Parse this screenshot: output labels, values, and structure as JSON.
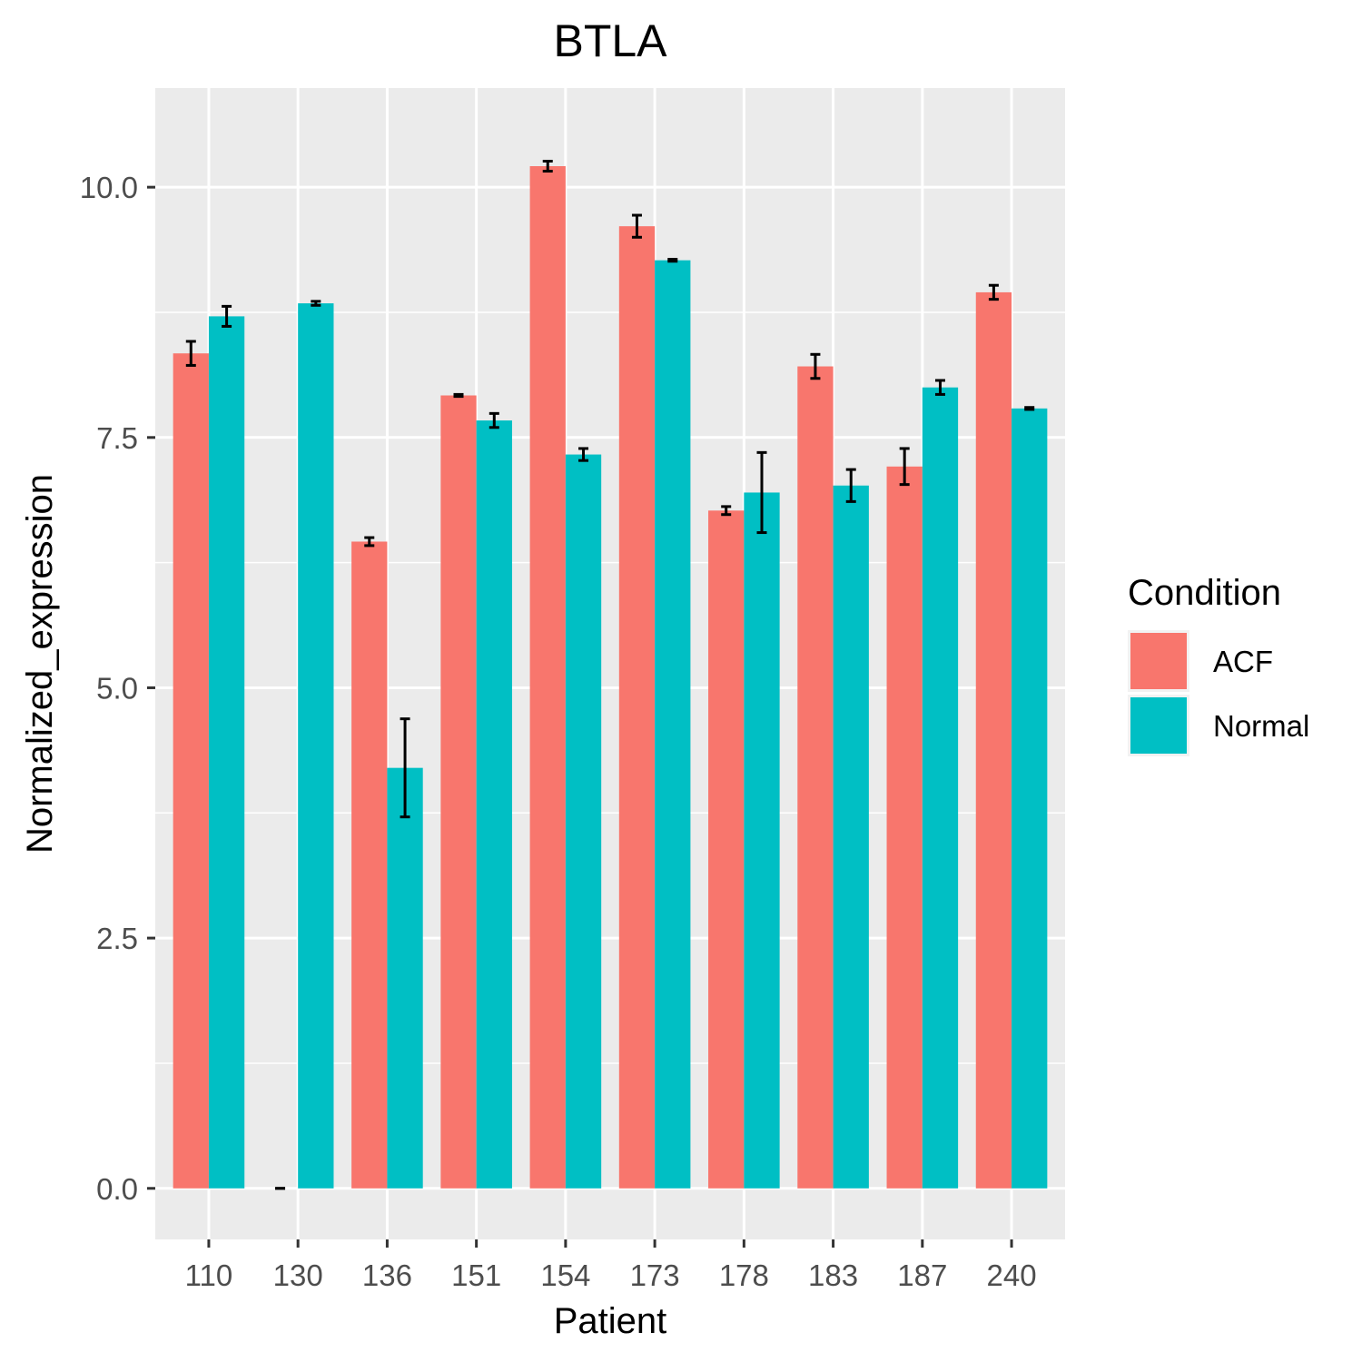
{
  "chart_data": {
    "type": "bar",
    "title": "BTLA",
    "xlabel": "Patient",
    "ylabel": "Normalized_expression",
    "categories": [
      "110",
      "130",
      "136",
      "151",
      "154",
      "173",
      "178",
      "183",
      "187",
      "240"
    ],
    "series": [
      {
        "name": "ACF",
        "color": "#F8766D",
        "values": [
          8.34,
          0.0,
          6.46,
          7.92,
          10.21,
          9.61,
          6.77,
          8.21,
          7.21,
          8.95
        ],
        "error_low": [
          8.22,
          0.0,
          6.42,
          7.91,
          10.16,
          9.5,
          6.73,
          8.09,
          7.03,
          8.88
        ],
        "error_high": [
          8.46,
          0.0,
          6.5,
          7.93,
          10.26,
          9.72,
          6.81,
          8.33,
          7.39,
          9.02
        ]
      },
      {
        "name": "Normal",
        "color": "#00BFC4",
        "values": [
          8.71,
          8.84,
          4.2,
          7.67,
          7.33,
          9.27,
          6.95,
          7.02,
          8.0,
          7.79
        ],
        "error_low": [
          8.61,
          8.82,
          3.71,
          7.6,
          7.27,
          9.26,
          6.55,
          6.86,
          7.93,
          7.78
        ],
        "error_high": [
          8.81,
          8.86,
          4.69,
          7.74,
          7.39,
          9.28,
          7.35,
          7.18,
          8.07,
          7.8
        ]
      }
    ],
    "y_ticks": [
      "0.0",
      "2.5",
      "5.0",
      "7.5",
      "10.0"
    ],
    "y_tick_values": [
      0,
      2.5,
      5,
      7.5,
      10
    ],
    "ylim": [
      -0.51,
      10.99
    ],
    "grid": true,
    "legend_title": "Condition",
    "legend_position": "right"
  }
}
